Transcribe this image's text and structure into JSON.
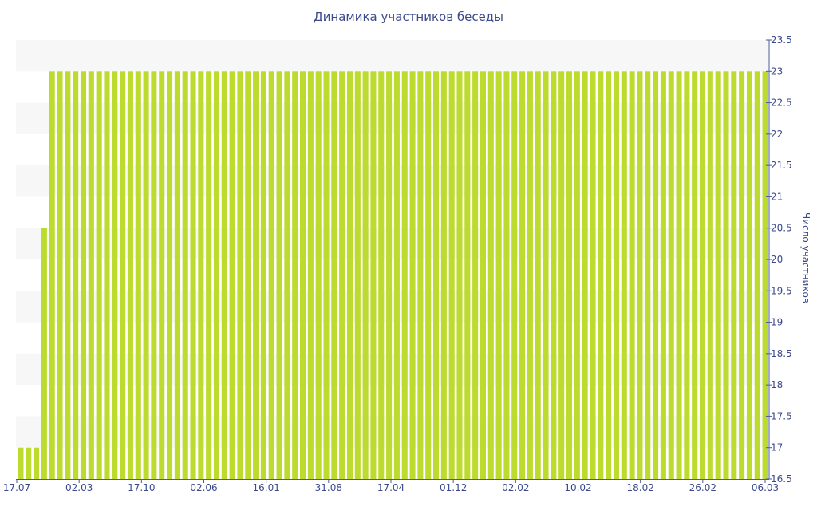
{
  "chart_data": {
    "type": "bar",
    "title": "Динамика участников беседы",
    "ylabel": "Число участников",
    "y_axis_side": "right",
    "ylim": [
      16.5,
      23.5
    ],
    "y_ticks": [
      16.5,
      17,
      17.5,
      18,
      18.5,
      19,
      19.5,
      20,
      20.5,
      21,
      21.5,
      22,
      22.5,
      23,
      23.5
    ],
    "x_tick_labels": [
      "17.07",
      "02.03",
      "17.10",
      "02.06",
      "16.01",
      "31.08",
      "17.04",
      "01.12",
      "02.02",
      "10.02",
      "18.02",
      "26.02",
      "06.03"
    ],
    "values": [
      17,
      17,
      17,
      20.5,
      23,
      23,
      23,
      23,
      23,
      23,
      23,
      23,
      23,
      23,
      23,
      23,
      23,
      23,
      23,
      23,
      23,
      23,
      23,
      23,
      23,
      23,
      23,
      23,
      23,
      23,
      23,
      23,
      23,
      23,
      23,
      23,
      23,
      23,
      23,
      23,
      23,
      23,
      23,
      23,
      23,
      23,
      23,
      23,
      23,
      23,
      23,
      23,
      23,
      23,
      23,
      23,
      23,
      23,
      23,
      23,
      23,
      23,
      23,
      23,
      23,
      23,
      23,
      23,
      23,
      23,
      23,
      23,
      23,
      23,
      23,
      23,
      23,
      23,
      23,
      23,
      23,
      23,
      23,
      23,
      23,
      23,
      23,
      23,
      23,
      23,
      23,
      23,
      23,
      23,
      23,
      23
    ],
    "grid": "alternating horizontal bands",
    "legend": "none",
    "colors": {
      "bar": "#bcdb2e",
      "band": "#f7f7f7",
      "text": "#3b4a8c",
      "axis": "#4a5a9a"
    }
  }
}
